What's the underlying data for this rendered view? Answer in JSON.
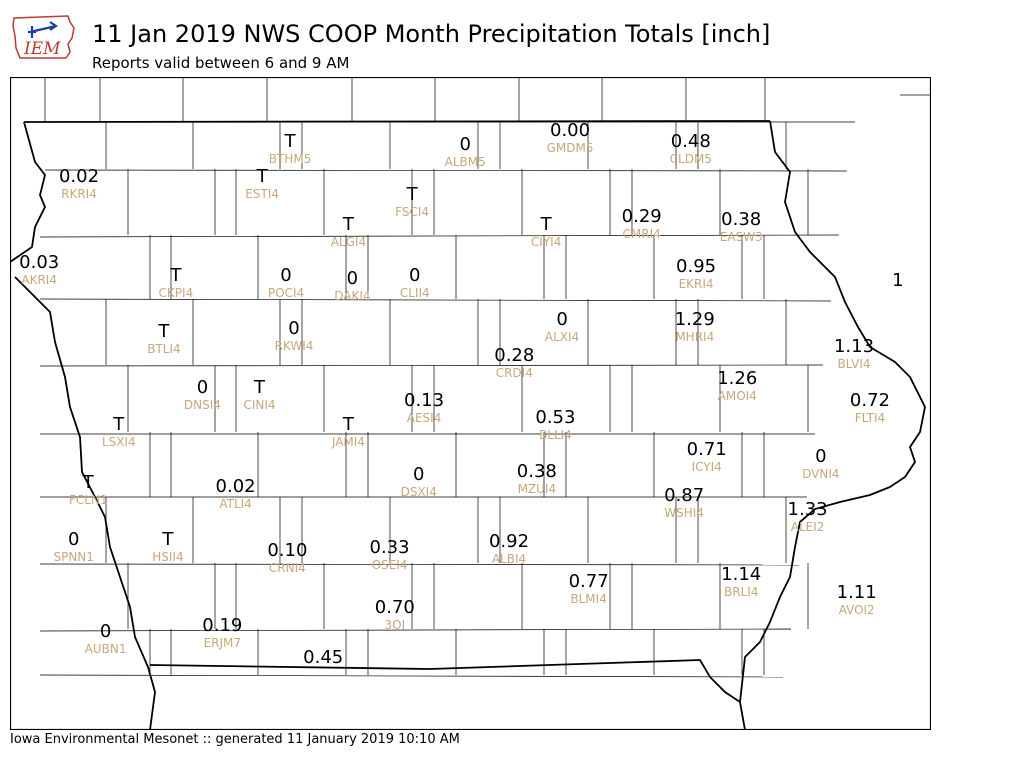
{
  "header": {
    "logo_text": "IEM",
    "title": "11 Jan 2019 NWS COOP Month Precipitation Totals [inch]",
    "subtitle": "Reports valid between 6 and 9 AM"
  },
  "footer": {
    "text": "Iowa Environmental Mesonet :: generated 11 January 2019 10:10 AM"
  },
  "colors": {
    "value": "#000000",
    "station_id": "#c8a878",
    "state_border": "#000000"
  },
  "stations": [
    {
      "id": "BTHM5",
      "value": "T",
      "lon": -94.67,
      "lat": 43.62
    },
    {
      "id": "ALBM5",
      "value": "0",
      "lon": -93.35,
      "lat": 43.6
    },
    {
      "id": "GMDM5",
      "value": "0.00",
      "lon": -92.56,
      "lat": 43.69
    },
    {
      "id": "CLDM5",
      "value": "0.48",
      "lon": -91.65,
      "lat": 43.62
    },
    {
      "id": "RKRI4",
      "value": "0.02",
      "lon": -96.26,
      "lat": 43.39
    },
    {
      "id": "ESTI4",
      "value": "T",
      "lon": -94.88,
      "lat": 43.39
    },
    {
      "id": "FSCI4",
      "value": "T",
      "lon": -93.75,
      "lat": 43.27
    },
    {
      "id": "CIYI4",
      "value": "T",
      "lon": -92.74,
      "lat": 43.07
    },
    {
      "id": "CMRI4",
      "value": "0.29",
      "lon": -92.02,
      "lat": 43.12
    },
    {
      "id": "EASW3",
      "value": "0.38",
      "lon": -91.27,
      "lat": 43.1
    },
    {
      "id": "ALGI4",
      "value": "T",
      "lon": -94.23,
      "lat": 43.07
    },
    {
      "id": "AKRI4",
      "value": "0.03",
      "lon": -96.56,
      "lat": 42.82
    },
    {
      "id": "CKPI4",
      "value": "T",
      "lon": -95.53,
      "lat": 42.73
    },
    {
      "id": "POCI4",
      "value": "0",
      "lon": -94.7,
      "lat": 42.73
    },
    {
      "id": "DAKI4",
      "value": "0",
      "lon": -94.2,
      "lat": 42.71
    },
    {
      "id": "CLII4",
      "value": "0",
      "lon": -93.73,
      "lat": 42.73
    },
    {
      "id": "EKRI4",
      "value": "0.95",
      "lon": -91.61,
      "lat": 42.79
    },
    {
      "id": "ALXI4",
      "value": "0",
      "lon": -92.62,
      "lat": 42.44
    },
    {
      "id": "MHRI4",
      "value": "1.29",
      "lon": -91.62,
      "lat": 42.44
    },
    {
      "id": "BTLI4",
      "value": "T",
      "lon": -95.62,
      "lat": 42.36
    },
    {
      "id": "RKWI4",
      "value": "0",
      "lon": -94.64,
      "lat": 42.38
    },
    {
      "id": "BLVI4",
      "value": "1.13",
      "lon": -90.42,
      "lat": 42.26
    },
    {
      "id": "CRDI4",
      "value": "0.28",
      "lon": -92.98,
      "lat": 42.2
    },
    {
      "id": "DNSI4",
      "value": "0",
      "lon": -95.33,
      "lat": 41.99
    },
    {
      "id": "CINI4",
      "value": "T",
      "lon": -94.9,
      "lat": 41.99
    },
    {
      "id": "AMOI4",
      "value": "1.26",
      "lon": -91.3,
      "lat": 42.05
    },
    {
      "id": "AESI4",
      "value": "0.13",
      "lon": -93.66,
      "lat": 41.9
    },
    {
      "id": "FLTI4",
      "value": "0.72",
      "lon": -90.3,
      "lat": 41.9
    },
    {
      "id": "LSXI4",
      "value": "T",
      "lon": -95.96,
      "lat": 41.74
    },
    {
      "id": "JAMI4",
      "value": "T",
      "lon": -94.23,
      "lat": 41.74
    },
    {
      "id": "BLLI4",
      "value": "0.53",
      "lon": -92.67,
      "lat": 41.79
    },
    {
      "id": "ICYI4",
      "value": "0.71",
      "lon": -91.53,
      "lat": 41.58
    },
    {
      "id": "DVNI4",
      "value": "0",
      "lon": -90.67,
      "lat": 41.53
    },
    {
      "id": "MZUI4",
      "value": "0.38",
      "lon": -92.81,
      "lat": 41.43
    },
    {
      "id": "DSXI4",
      "value": "0",
      "lon": -93.7,
      "lat": 41.41
    },
    {
      "id": "FCLN1",
      "value": "T",
      "lon": -96.19,
      "lat": 41.36
    },
    {
      "id": "ATLI4",
      "value": "0.02",
      "lon": -95.08,
      "lat": 41.33
    },
    {
      "id": "WSHI4",
      "value": "0.87",
      "lon": -91.7,
      "lat": 41.27
    },
    {
      "id": "ALEI2",
      "value": "1.33",
      "lon": -90.77,
      "lat": 41.18
    },
    {
      "id": "SPNN1",
      "value": "0",
      "lon": -96.3,
      "lat": 40.98
    },
    {
      "id": "HSII4",
      "value": "T",
      "lon": -95.59,
      "lat": 40.98
    },
    {
      "id": "CRNI4",
      "value": "0.10",
      "lon": -94.69,
      "lat": 40.91
    },
    {
      "id": "OSEI4",
      "value": "0.33",
      "lon": -93.92,
      "lat": 40.93
    },
    {
      "id": "ALBI4",
      "value": "0.92",
      "lon": -93.02,
      "lat": 40.97
    },
    {
      "id": "BLMI4",
      "value": "0.77",
      "lon": -92.42,
      "lat": 40.7
    },
    {
      "id": "BRLI4",
      "value": "1.14",
      "lon": -91.27,
      "lat": 40.75
    },
    {
      "id": "AVOI2",
      "value": "1.11",
      "lon": -90.4,
      "lat": 40.63
    },
    {
      "id": "3OI",
      "value": "0.70",
      "lon": -93.88,
      "lat": 40.53
    },
    {
      "id": "ERJM7",
      "value": "0.19",
      "lon": -95.18,
      "lat": 40.41
    },
    {
      "id": "AUBN1",
      "value": "0",
      "lon": -96.06,
      "lat": 40.37
    },
    {
      "id": "",
      "value": "0.45",
      "lon": -94.42,
      "lat": 40.2
    },
    {
      "id": "",
      "value": "1",
      "lon": -90.09,
      "lat": 42.7
    }
  ]
}
